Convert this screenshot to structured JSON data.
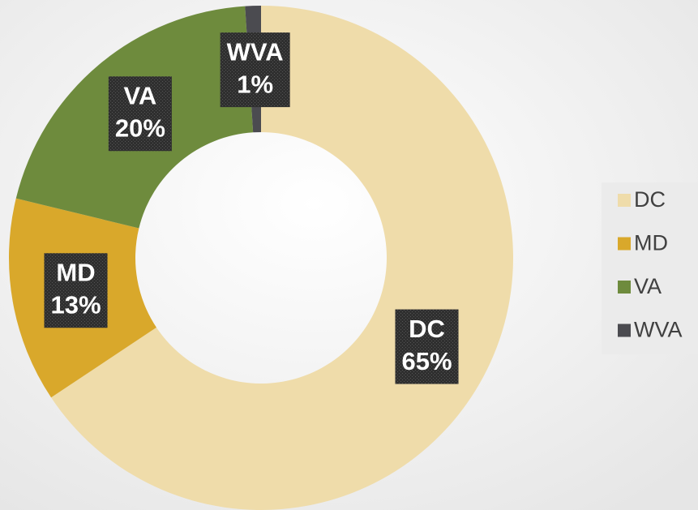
{
  "chart_data": {
    "type": "donut",
    "categories": [
      "DC",
      "MD",
      "VA",
      "WVA"
    ],
    "values": [
      65,
      13,
      20,
      1
    ],
    "value_labels": [
      "65%",
      "13%",
      "20%",
      "1%"
    ],
    "colors": [
      "#efdcaa",
      "#d9a82b",
      "#6e8b3d",
      "#4b4b50"
    ],
    "legend": "right"
  }
}
